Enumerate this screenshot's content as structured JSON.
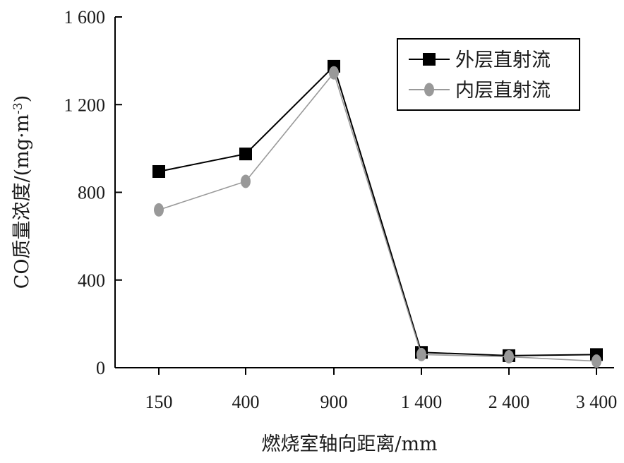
{
  "chart_data": {
    "type": "line",
    "title": "",
    "xlabel": "燃烧室轴向距离/mm",
    "ylabel_parts": {
      "main": "CO质量浓度/(mg·m",
      "sup": "-3",
      "close": ")"
    },
    "categories": [
      "150",
      "400",
      "900",
      "1 400",
      "2 400",
      "3 400"
    ],
    "y_ticks": [
      {
        "value": 0,
        "label": "0"
      },
      {
        "value": 400,
        "label": "400"
      },
      {
        "value": 800,
        "label": "800"
      },
      {
        "value": 1200,
        "label": "1 200"
      },
      {
        "value": 1600,
        "label": "1 600"
      }
    ],
    "ylim": [
      0,
      1600
    ],
    "legend_position": "top-right",
    "grid": false,
    "series": [
      {
        "name": "外层直射流",
        "values": [
          895,
          975,
          1375,
          70,
          55,
          60
        ],
        "color": "#000000",
        "marker": "square"
      },
      {
        "name": "内层直射流",
        "values": [
          720,
          850,
          1345,
          60,
          50,
          30
        ],
        "color": "#999999",
        "marker": "ellipse"
      }
    ]
  }
}
